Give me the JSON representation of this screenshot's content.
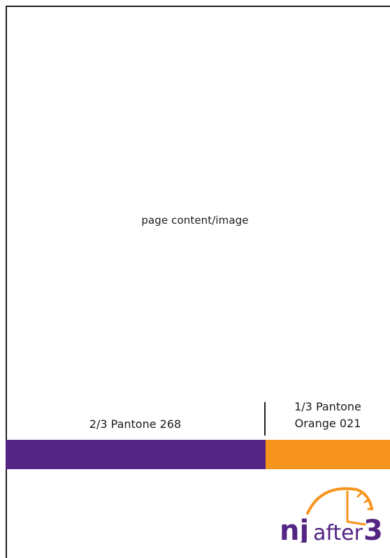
{
  "page": {
    "placeholder": "page content/image"
  },
  "color_bar": {
    "left_label": "2/3 Pantone 268",
    "right_label_line1": "1/3 Pantone",
    "right_label_line2": "Orange 021",
    "purple_color": "#542583",
    "orange_color": "#f7941d"
  },
  "logo": {
    "prefix": "nj",
    "word": "after",
    "number": "3",
    "purple_color": "#542583",
    "orange_color": "#f7941d"
  }
}
